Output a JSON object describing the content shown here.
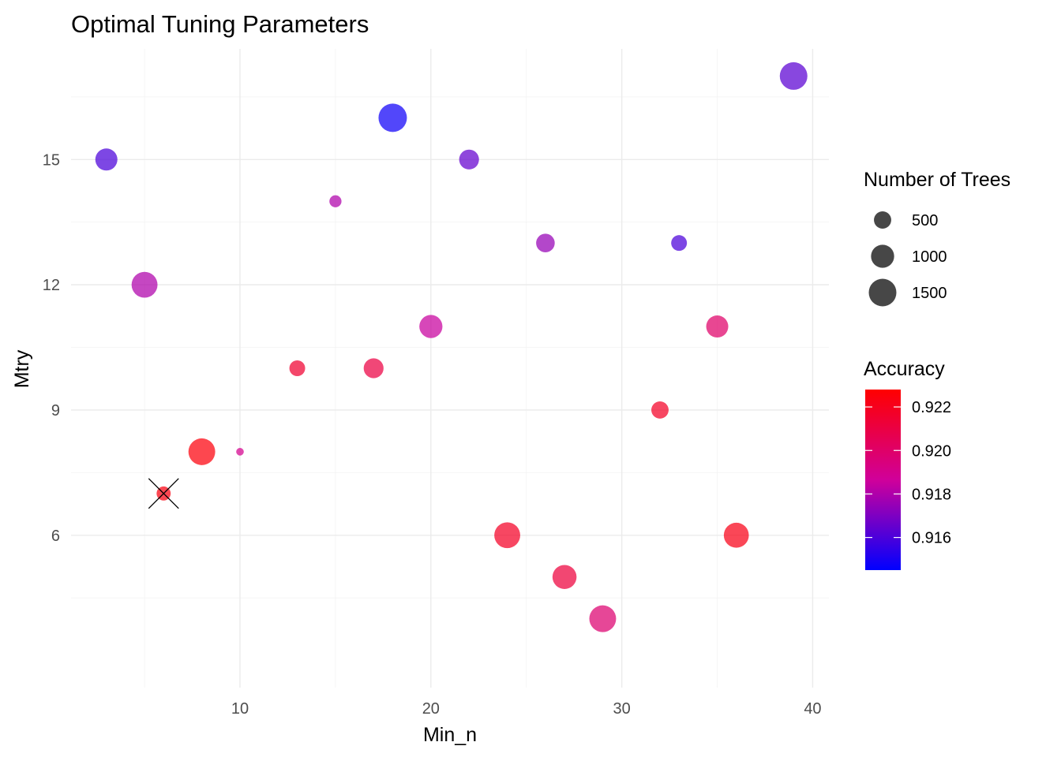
{
  "chart_data": {
    "type": "scatter",
    "title": "Optimal Tuning Parameters",
    "xlabel": "Min_n",
    "ylabel": "Mtry",
    "xlim": [
      1.15,
      40.85
    ],
    "ylim": [
      2.35,
      17.65
    ],
    "x_ticks": [
      10,
      20,
      30,
      40
    ],
    "y_ticks": [
      6,
      9,
      12,
      15
    ],
    "grid": true,
    "legend_position": "right",
    "size_legend": {
      "title": "Number of Trees",
      "values": [
        500,
        1000,
        1500
      ]
    },
    "color_legend": {
      "title": "Accuracy",
      "min": 0.9145,
      "max": 0.9228,
      "ticks": [
        0.916,
        0.918,
        0.92,
        0.922
      ],
      "low_color": "#0000ff",
      "high_color": "#ff0000"
    },
    "points": [
      {
        "min_n": 3,
        "mtry": 15,
        "trees": 900,
        "accuracy": 0.916
      },
      {
        "min_n": 5,
        "mtry": 12,
        "trees": 1300,
        "accuracy": 0.918
      },
      {
        "min_n": 6,
        "mtry": 7,
        "trees": 300,
        "accuracy": 0.9224,
        "optimal": true
      },
      {
        "min_n": 8,
        "mtry": 8,
        "trees": 1400,
        "accuracy": 0.9225
      },
      {
        "min_n": 10,
        "mtry": 8,
        "trees": 50,
        "accuracy": 0.919
      },
      {
        "min_n": 13,
        "mtry": 10,
        "trees": 400,
        "accuracy": 0.9215
      },
      {
        "min_n": 15,
        "mtry": 14,
        "trees": 200,
        "accuracy": 0.918
      },
      {
        "min_n": 17,
        "mtry": 10,
        "trees": 700,
        "accuracy": 0.921
      },
      {
        "min_n": 18,
        "mtry": 16,
        "trees": 1600,
        "accuracy": 0.9148
      },
      {
        "min_n": 20,
        "mtry": 11,
        "trees": 1000,
        "accuracy": 0.9185
      },
      {
        "min_n": 22,
        "mtry": 15,
        "trees": 700,
        "accuracy": 0.9165
      },
      {
        "min_n": 24,
        "mtry": 6,
        "trees": 1300,
        "accuracy": 0.9218
      },
      {
        "min_n": 26,
        "mtry": 13,
        "trees": 600,
        "accuracy": 0.9175
      },
      {
        "min_n": 27,
        "mtry": 5,
        "trees": 1100,
        "accuracy": 0.9212
      },
      {
        "min_n": 29,
        "mtry": 4,
        "trees": 1400,
        "accuracy": 0.9198
      },
      {
        "min_n": 32,
        "mtry": 9,
        "trees": 500,
        "accuracy": 0.9218
      },
      {
        "min_n": 33,
        "mtry": 13,
        "trees": 400,
        "accuracy": 0.916
      },
      {
        "min_n": 35,
        "mtry": 11,
        "trees": 900,
        "accuracy": 0.92
      },
      {
        "min_n": 36,
        "mtry": 6,
        "trees": 1200,
        "accuracy": 0.9222
      },
      {
        "min_n": 39,
        "mtry": 17,
        "trees": 1500,
        "accuracy": 0.9163
      }
    ]
  }
}
